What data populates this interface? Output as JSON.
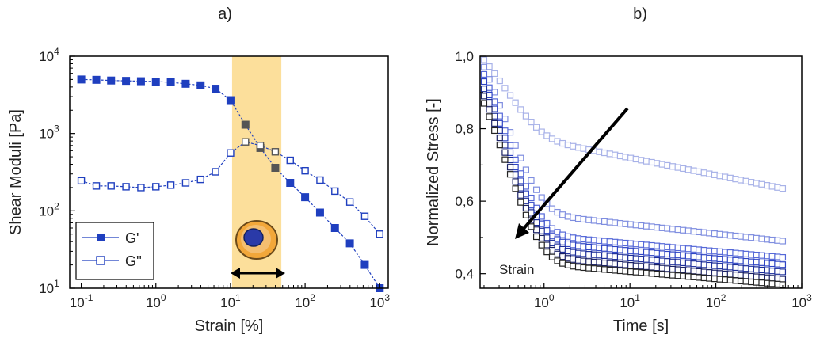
{
  "panel_labels": [
    "a)",
    "b)"
  ],
  "chart_data": [
    {
      "type": "scatter",
      "xscale": "log",
      "yscale": "log",
      "xlabel": "Strain [%]",
      "ylabel": "Shear Moduli [Pa]",
      "xlim": [
        0.07,
        1300
      ],
      "ylim": [
        10,
        10000
      ],
      "xticks": [
        {
          "v": 0.1,
          "base": "10",
          "exp": "-1"
        },
        {
          "v": 1,
          "base": "10",
          "exp": "0"
        },
        {
          "v": 10,
          "base": "10",
          "exp": "1"
        },
        {
          "v": 100,
          "base": "10",
          "exp": "2"
        },
        {
          "v": 1000,
          "base": "10",
          "exp": "3"
        }
      ],
      "yticks": [
        {
          "v": 10,
          "base": "10",
          "exp": "1"
        },
        {
          "v": 100,
          "base": "10",
          "exp": "2"
        },
        {
          "v": 1000,
          "base": "10",
          "exp": "3"
        },
        {
          "v": 10000,
          "base": "10",
          "exp": "4"
        }
      ],
      "highlight_band": [
        10.5,
        48
      ],
      "legend_position": "bottom-left",
      "series": [
        {
          "name": "G'",
          "marker": "filled-square",
          "color": "#1f3fbf",
          "x": [
            0.1,
            0.159,
            0.251,
            0.398,
            0.631,
            1.0,
            1.585,
            2.512,
            3.981,
            6.31,
            10.0,
            15.85,
            25.12,
            39.81,
            63.1,
            100,
            158.5,
            251.2,
            398.1,
            631,
            1000
          ],
          "y": [
            5000,
            4950,
            4850,
            4800,
            4750,
            4700,
            4600,
            4400,
            4200,
            3800,
            2700,
            1300,
            650,
            360,
            230,
            150,
            95,
            60,
            38,
            20,
            10
          ]
        },
        {
          "name": "G''",
          "marker": "open-square",
          "color": "#1f3fbf",
          "x": [
            0.1,
            0.159,
            0.251,
            0.398,
            0.631,
            1.0,
            1.585,
            2.512,
            3.981,
            6.31,
            10.0,
            15.85,
            25.12,
            39.81,
            63.1,
            100,
            158.5,
            251.2,
            398.1,
            631,
            1000
          ],
          "y": [
            245,
            210,
            210,
            205,
            200,
            205,
            215,
            230,
            255,
            320,
            560,
            780,
            700,
            580,
            450,
            330,
            250,
            180,
            130,
            85,
            50
          ]
        }
      ]
    },
    {
      "type": "scatter",
      "xscale": "log",
      "xlabel": "Time [s]",
      "ylabel": "Normalized Stress [-]",
      "xlim": [
        0.18,
        1000
      ],
      "ylim": [
        0.36,
        1.0
      ],
      "xticks": [
        {
          "v": 1,
          "base": "10",
          "exp": "0"
        },
        {
          "v": 10,
          "base": "10",
          "exp": "1"
        },
        {
          "v": 100,
          "base": "10",
          "exp": "2"
        },
        {
          "v": 1000,
          "base": "10",
          "exp": "3"
        }
      ],
      "yticks": [
        {
          "v": 0.4,
          "label": "0,4"
        },
        {
          "v": 0.6,
          "label": "0,6"
        },
        {
          "v": 0.8,
          "label": "0,8"
        },
        {
          "v": 1.0,
          "label": "1,0"
        }
      ],
      "annotation": "Strain",
      "marker": "open-square",
      "series": [
        {
          "color": "#a8b2e8",
          "y0": 0.99,
          "y_end": 0.635
        },
        {
          "color": "#7f8ee0",
          "y0": 0.97,
          "y_end": 0.49
        },
        {
          "color": "#5568d8",
          "y0": 0.95,
          "y_end": 0.445
        },
        {
          "color": "#2f45c4",
          "y0": 0.93,
          "y_end": 0.425
        },
        {
          "color": "#1e2f9a",
          "y0": 0.91,
          "y_end": 0.405
        },
        {
          "color": "#1b2266",
          "y0": 0.89,
          "y_end": 0.385
        },
        {
          "color": "#222222",
          "y0": 0.87,
          "y_end": 0.37
        }
      ],
      "series_asymptote": [
        0.8,
        0.58,
        0.52,
        0.5,
        0.48,
        0.46,
        0.44
      ]
    }
  ]
}
